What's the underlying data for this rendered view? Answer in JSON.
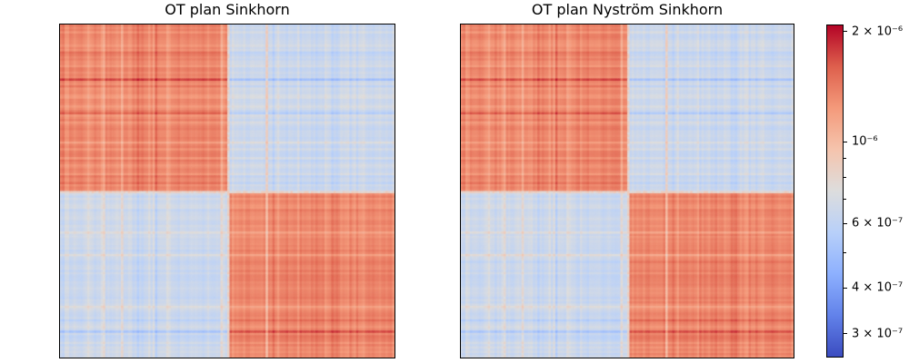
{
  "figure": {
    "background_color": "#ffffff",
    "text_color": "#000000"
  },
  "chart_data": {
    "type": "heatmap",
    "panels": [
      {
        "title": "OT plan Sinkhorn",
        "block_values": [
          [
            1.35e-06,
            6.5e-07
          ],
          [
            6.5e-07,
            1.35e-06
          ]
        ]
      },
      {
        "title": "OT plan Nyström Sinkhorn",
        "block_values": [
          [
            1.35e-06,
            6.5e-07
          ],
          [
            6.5e-07,
            1.35e-06
          ]
        ]
      }
    ],
    "block_structure": "2x2 blocks split at 50%: diagonal blocks high (warm orange), off-diagonal blocks low (light blue), thin row/column striations, whitish line at block boundary",
    "matrix_size_estimate": 148,
    "boundary_value": 8.2e-07,
    "scale": {
      "type": "log",
      "vmin": 2.6e-07,
      "vmax": 2.09e-06
    },
    "colormap": {
      "name": "coolwarm",
      "stops": [
        [
          0.0,
          "#3b4cc0"
        ],
        [
          0.125,
          "#6282ea"
        ],
        [
          0.25,
          "#8db0fe"
        ],
        [
          0.375,
          "#b8d0f9"
        ],
        [
          0.5,
          "#dddddd"
        ],
        [
          0.625,
          "#f5c4ad"
        ],
        [
          0.75,
          "#f49a7b"
        ],
        [
          0.875,
          "#de604d"
        ],
        [
          1.0,
          "#b40426"
        ]
      ]
    },
    "colorbar": {
      "position": "right",
      "major_ticks": [
        {
          "value": 2e-06,
          "label": "2 × 10⁻⁶"
        },
        {
          "value": 1e-06,
          "label": "10⁻⁶"
        },
        {
          "value": 6e-07,
          "label": "6 × 10⁻⁷"
        },
        {
          "value": 4e-07,
          "label": "4 × 10⁻⁷"
        },
        {
          "value": 3e-07,
          "label": "3 × 10⁻⁷"
        }
      ],
      "minor_ticks": [
        9e-07,
        8e-07,
        7e-07,
        5e-07
      ]
    },
    "axes_decoration": "black 1px spines, no tick marks or tick labels on heatmap axes"
  }
}
